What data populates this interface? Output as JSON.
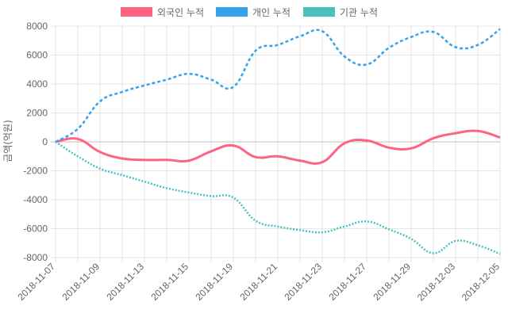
{
  "chart_data": {
    "type": "line",
    "title": "",
    "xlabel": "",
    "ylabel": "금액(억원)",
    "ylim": [
      -8000,
      8000
    ],
    "yticks": [
      "8000",
      "6000",
      "4000",
      "2000",
      "0",
      "-2000",
      "-4000",
      "-6000",
      "-8000"
    ],
    "ytick_values": [
      8000,
      6000,
      4000,
      2000,
      0,
      -2000,
      -4000,
      -6000,
      -8000
    ],
    "categories": [
      "2018-11-07",
      "2018-11-08",
      "2018-11-09",
      "2018-11-12",
      "2018-11-13",
      "2018-11-14",
      "2018-11-15",
      "2018-11-16",
      "2018-11-19",
      "2018-11-20",
      "2018-11-21",
      "2018-11-22",
      "2018-11-23",
      "2018-11-26",
      "2018-11-27",
      "2018-11-28",
      "2018-11-29",
      "2018-11-30",
      "2018-12-03",
      "2018-12-04",
      "2018-12-05"
    ],
    "xtick_labels": [
      "2018-11-07",
      "2018-11-09",
      "2018-11-13",
      "2018-11-15",
      "2018-11-19",
      "2018-11-21",
      "2018-11-23",
      "2018-11-27",
      "2018-11-29",
      "2018-12-03",
      "2018-12-05"
    ],
    "xtick_indices": [
      0,
      2,
      4,
      6,
      8,
      10,
      12,
      14,
      16,
      18,
      20
    ],
    "legend_position": "top",
    "series": [
      {
        "name": "외국인 누적",
        "color": "#ff6384",
        "dash": "solid",
        "values": [
          0,
          200,
          -700,
          -1150,
          -1250,
          -1250,
          -1300,
          -650,
          -250,
          -1050,
          -1000,
          -1300,
          -1400,
          -100,
          100,
          -400,
          -450,
          250,
          600,
          750,
          300
        ]
      },
      {
        "name": "개인 누적",
        "color": "#36a2eb",
        "dash": "dashed",
        "values": [
          0,
          900,
          2800,
          3450,
          3900,
          4300,
          4700,
          4300,
          3800,
          6300,
          6700,
          7300,
          7650,
          5900,
          5350,
          6500,
          7250,
          7600,
          6550,
          6700,
          7800
        ]
      },
      {
        "name": "기관 누적",
        "color": "#4bc0c0",
        "dash": "dotted",
        "values": [
          0,
          -1000,
          -1850,
          -2300,
          -2750,
          -3200,
          -3500,
          -3750,
          -3850,
          -5450,
          -5850,
          -6100,
          -6250,
          -5850,
          -5500,
          -6050,
          -6700,
          -7700,
          -6850,
          -7150,
          -7750
        ]
      }
    ]
  }
}
